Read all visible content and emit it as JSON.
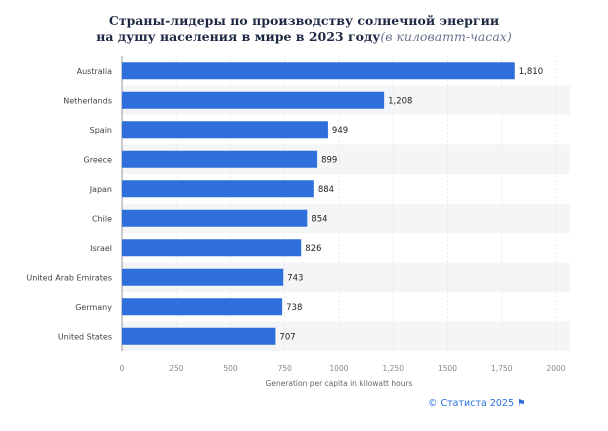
{
  "chart_data": {
    "type": "bar",
    "orientation": "horizontal",
    "title_line1": "Страны-лидеры по производству солнечной энергии",
    "title_line2": "на душу населения в мире в 2023 году",
    "title_suffix": "(в киловатт-часах)",
    "categories": [
      "Australia",
      "Netherlands",
      "Spain",
      "Greece",
      "Japan",
      "Chile",
      "Israel",
      "United Arab Emirates",
      "Germany",
      "United States"
    ],
    "values": [
      1810,
      1208,
      949,
      899,
      884,
      854,
      826,
      743,
      738,
      707
    ],
    "value_labels": [
      "1,810",
      "1,208",
      "949",
      "899",
      "884",
      "854",
      "826",
      "743",
      "738",
      "707"
    ],
    "xlabel": "Generation per capita in kilowatt hours",
    "xlim": [
      0,
      2000
    ],
    "xticks": [
      0,
      250,
      500,
      750,
      1000,
      1250,
      1500,
      1750,
      2000
    ],
    "xtick_labels": [
      "0",
      "250",
      "500",
      "750",
      "1000",
      "1,250",
      "1500",
      "1,750",
      "2000"
    ],
    "bar_color": "#2f6fdc",
    "grid": true
  },
  "credit": "© Статиста 2025 ⚑"
}
